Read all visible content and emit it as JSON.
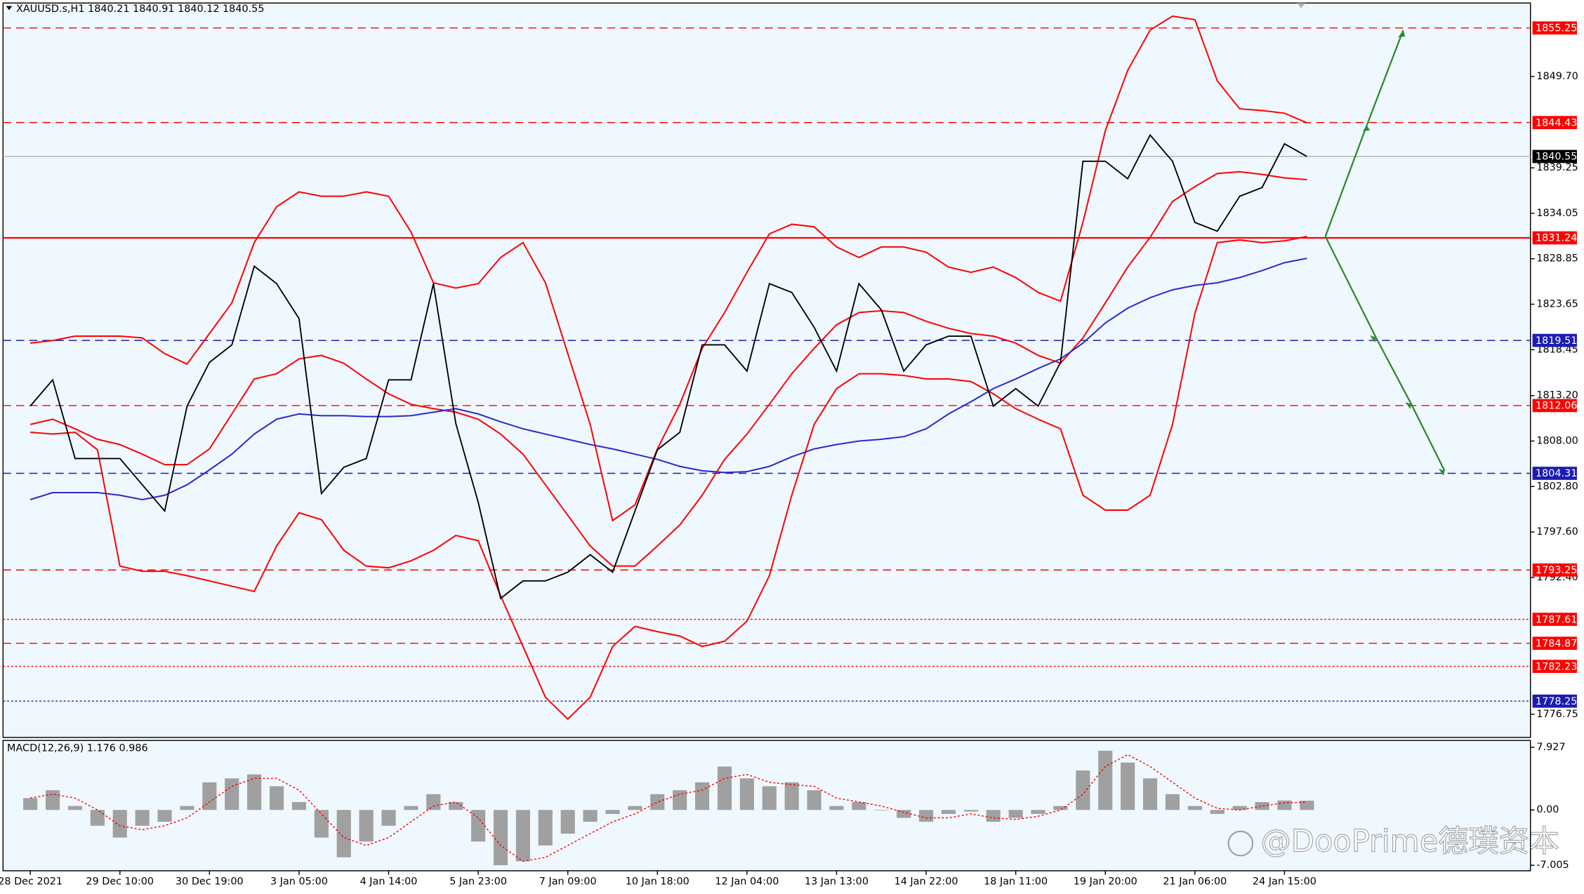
{
  "chart_data": [
    {
      "type": "line",
      "title": "XAUUSD.s,H1  1840.21 1840.91 1840.12 1840.55",
      "categories": [
        "28 Dec 2021",
        null,
        null,
        null,
        "29 Dec 10:00",
        null,
        null,
        null,
        "30 Dec 19:00",
        null,
        null,
        null,
        "3 Jan 05:00",
        null,
        null,
        null,
        "4 Jan 14:00",
        null,
        null,
        null,
        "5 Jan 23:00",
        null,
        null,
        null,
        "7 Jan 09:00",
        null,
        null,
        null,
        "10 Jan 18:00",
        null,
        null,
        null,
        "12 Jan 04:00",
        null,
        null,
        null,
        "13 Jan 13:00",
        null,
        null,
        null,
        "14 Jan 22:00",
        null,
        null,
        null,
        "18 Jan 11:00",
        null,
        null,
        null,
        "19 Jan 20:00",
        null,
        null,
        null,
        "21 Jan 06:00",
        null,
        null,
        null,
        "24 Jan 15:00",
        null
      ],
      "series": [
        {
          "color": "#ff0000",
          "values": [
            1819.2,
            1819.5,
            1820,
            1820,
            1820,
            1819.8,
            1818,
            1816.8,
            1820.3,
            1823.8,
            1830.7,
            1834.8,
            1836.5,
            1836,
            1836,
            1836.5,
            1836,
            1831.9,
            1826.1,
            1825.5,
            1826,
            1829,
            1830.7,
            1826.1,
            1818,
            1809.9,
            1798.9,
            1800.7,
            1807.1,
            1812.2,
            1818.6,
            1822.7,
            1827.3,
            1831.7,
            1832.8,
            1832.5,
            1830.2,
            1829,
            1830.2,
            1830.2,
            1829.6,
            1827.9,
            1827.3,
            1827.9,
            1826.7,
            1825,
            1824,
            1833,
            1843.5,
            1850.4,
            1855,
            1856.6,
            1856.2,
            1849.2,
            1846,
            1845.8,
            1845.5,
            1844.4
          ]
        },
        {
          "color": "#ff0000",
          "values": [
            1809.9,
            1810.5,
            1809.4,
            1808.2,
            1807.6,
            1806.5,
            1805.3,
            1805.3,
            1807.1,
            1811.1,
            1815.1,
            1815.7,
            1817.4,
            1817.8,
            1816.9,
            1815.1,
            1813.4,
            1812.2,
            1811.7,
            1811.3,
            1810.5,
            1808.8,
            1806.5,
            1803,
            1799.5,
            1796,
            1793.7,
            1793.7,
            1796,
            1798.4,
            1801.8,
            1805.9,
            1808.8,
            1812.2,
            1815.7,
            1818.6,
            1821.3,
            1822.7,
            1822.9,
            1822.7,
            1821.7,
            1820.9,
            1820.3,
            1820,
            1819.2,
            1817.8,
            1816.9,
            1819.8,
            1823.8,
            1827.9,
            1831.3,
            1835.4,
            1837.1,
            1838.6,
            1838.8,
            1838.5,
            1838.1,
            1837.9
          ]
        },
        {
          "color": "#ff0000",
          "values": [
            1809,
            1808.8,
            1809,
            1807,
            1793.7,
            1793.1,
            1793.1,
            1792.6,
            1792,
            1791.4,
            1790.8,
            1796,
            1799.8,
            1799,
            1795.5,
            1793.7,
            1793.5,
            1794.3,
            1795.5,
            1797.2,
            1796.6,
            1790.3,
            1784.5,
            1778.7,
            1776.2,
            1778.7,
            1784.5,
            1786.8,
            1786.2,
            1785.7,
            1784.5,
            1785.1,
            1787.4,
            1792.6,
            1801.8,
            1809.9,
            1814,
            1815.7,
            1815.7,
            1815.5,
            1815.1,
            1815.1,
            1814.8,
            1813.4,
            1811.7,
            1810.5,
            1809.4,
            1801.8,
            1800.1,
            1800.1,
            1801.8,
            1809.9,
            1822.6,
            1830.7,
            1831,
            1830.7,
            1830.9,
            1831.4
          ]
        },
        {
          "color": "#2a2acd",
          "values": [
            1801.3,
            1802.1,
            1802.1,
            1802.1,
            1801.8,
            1801.3,
            1801.8,
            1803,
            1804.7,
            1806.5,
            1808.8,
            1810.5,
            1811.1,
            1810.9,
            1810.9,
            1810.8,
            1810.8,
            1810.9,
            1811.3,
            1811.7,
            1811.1,
            1810.2,
            1809.4,
            1808.8,
            1808.2,
            1807.6,
            1807.1,
            1806.5,
            1805.9,
            1805.1,
            1804.6,
            1804.4,
            1804.5,
            1805.1,
            1806.2,
            1807.1,
            1807.6,
            1808,
            1808.2,
            1808.5,
            1809.4,
            1811.1,
            1812.5,
            1814,
            1815.1,
            1816.3,
            1817.4,
            1819.2,
            1821.5,
            1823.2,
            1824.4,
            1825.3,
            1825.8,
            1826.1,
            1826.7,
            1827.5,
            1828.4,
            1828.9
          ]
        },
        {
          "color": "#000000",
          "values": [
            1812,
            1815,
            1806,
            1806,
            1806,
            1803,
            1800,
            1812,
            1817,
            1819,
            1828,
            1826,
            1822,
            1802,
            1805,
            1806,
            1815,
            1815,
            1826,
            1810,
            1801,
            1790,
            1792,
            1792,
            1793,
            1795,
            1793,
            1800,
            1807,
            1809,
            1819,
            1819,
            1816,
            1826,
            1825,
            1821,
            1816,
            1826,
            1823,
            1816,
            1819,
            1820,
            1820,
            1812,
            1814,
            1812,
            1817,
            1840,
            1840,
            1838,
            1843,
            1840,
            1833,
            1832,
            1836,
            1837,
            1842,
            1840.55
          ]
        }
      ],
      "ylim": [
        1774.1,
        1858.1
      ],
      "yticks": [
        {
          "value": 1849.7,
          "label": "1849.70"
        },
        1839.25,
        1834.05,
        1828.85,
        1823.65,
        1818.45,
        {
          "value": 1813.2,
          "label": "1813.20"
        },
        {
          "value": 1808,
          "label": "1808.00"
        },
        {
          "value": 1802.8,
          "label": "1802.80"
        },
        {
          "value": 1797.6,
          "label": "1797.60"
        },
        {
          "value": 1792.4,
          "label": "1792.40"
        },
        1776.75
      ],
      "levels": [
        {
          "value": 1855.25,
          "color": "#ff0000",
          "style": "dashed"
        },
        {
          "value": 1844.43,
          "color": "#ff0000",
          "style": "dashed"
        },
        {
          "value": 1840.55,
          "color": "#000000",
          "style": "thin"
        },
        {
          "value": 1831.24,
          "color": "#ff0000",
          "style": "solid"
        },
        {
          "value": 1819.51,
          "color": "#1c1cb4",
          "style": "dashed"
        },
        {
          "value": 1812.06,
          "color": "#ff0000",
          "style": "dashed"
        },
        {
          "value": 1804.31,
          "color": "#1c1cb4",
          "style": "dashed"
        },
        {
          "value": 1793.25,
          "color": "#ff0000",
          "style": "dashed"
        },
        {
          "value": 1787.61,
          "color": "#ff0000",
          "style": "dotted"
        },
        {
          "value": 1784.87,
          "color": "#ff0000",
          "style": "dashed"
        },
        {
          "value": 1782.23,
          "color": "#ff0000",
          "style": "dotted"
        },
        {
          "value": 1778.25,
          "color": "#1c1cb4",
          "style": "dotted"
        }
      ],
      "watermark": "@DooPrime德璞资本"
    },
    {
      "type": "bar",
      "title": "MACD(12,26,9) 1.176 0.986",
      "series": [
        {
          "color": "#a0a0a0",
          "values": [
            1.5,
            2.5,
            0.5,
            -2,
            -3.5,
            -2,
            -1.5,
            0.5,
            3.5,
            4,
            4.5,
            3,
            1,
            -3.5,
            -6,
            -4,
            -2,
            0.5,
            2,
            1,
            -4,
            -7,
            -6.5,
            -4.5,
            -3,
            -1.5,
            -0.5,
            0.5,
            2,
            2.5,
            3.5,
            5.5,
            4,
            3,
            3.5,
            2.5,
            0.5,
            1,
            0,
            -1,
            -1.5,
            -0.5,
            -0.2,
            -1.5,
            -1,
            -0.5,
            0.5,
            5,
            7.5,
            6,
            4,
            2,
            0.5,
            -0.5,
            0.5,
            1,
            1.2,
            1.176
          ]
        },
        {
          "color": "#ff0000",
          "values": [
            1.5,
            2,
            1.5,
            0,
            -2,
            -2.5,
            -2,
            -1,
            1,
            3,
            4,
            4,
            2.5,
            -0.5,
            -3.5,
            -4.5,
            -3.5,
            -1.5,
            0.5,
            1,
            -1,
            -4.5,
            -6.5,
            -6,
            -4.5,
            -3,
            -1.5,
            -0.5,
            1,
            2,
            2.5,
            4,
            4.5,
            3.5,
            3.2,
            3,
            1.5,
            1,
            0.5,
            -0.3,
            -1,
            -1,
            -0.5,
            -1,
            -1.2,
            -0.8,
            0,
            2,
            5.5,
            7,
            5.5,
            3.5,
            1.5,
            0.2,
            0,
            0.5,
            0.9,
            0.986
          ]
        }
      ],
      "ylim": [
        -7.7,
        8.8
      ],
      "yticks": [
        7.927,
        {
          "value": 0,
          "label": "0.00"
        },
        -7.005
      ]
    }
  ]
}
